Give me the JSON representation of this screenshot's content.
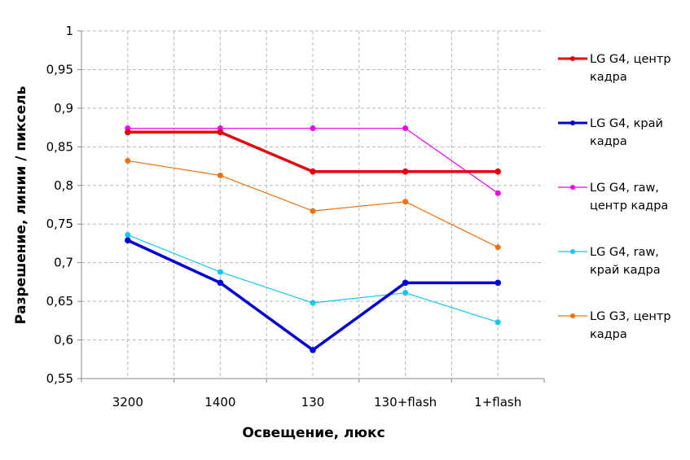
{
  "chart_data": {
    "type": "line",
    "title": "",
    "xlabel": "Освещение, люкс",
    "ylabel": "Разрешение, линии / пиксель",
    "categories": [
      "3200",
      "1400",
      "130",
      "130+flash",
      "1+flash"
    ],
    "ylim": [
      0.55,
      1
    ],
    "yticks": [
      "0,55",
      "0,6",
      "0,65",
      "0,7",
      "0,75",
      "0,8",
      "0,85",
      "0,9",
      "0,95",
      "1"
    ],
    "grid": true,
    "legend_position": "right",
    "series": [
      {
        "name_lines": [
          "LG G4, центр",
          "кадра"
        ],
        "color": "#e8000b",
        "width": 3.5,
        "values": [
          0.869,
          0.869,
          0.818,
          0.818,
          0.818
        ]
      },
      {
        "name_lines": [
          "LG G4, край",
          "кадра"
        ],
        "color": "#0000d8",
        "width": 3.5,
        "values": [
          0.729,
          0.674,
          0.587,
          0.674,
          0.674
        ]
      },
      {
        "name_lines": [
          "LG G4, raw,",
          "центр кадра"
        ],
        "color": "#f000f0",
        "width": 1.2,
        "values": [
          0.874,
          0.874,
          0.874,
          0.874,
          0.79
        ]
      },
      {
        "name_lines": [
          "LG G4, raw,",
          "край кадра"
        ],
        "color": "#10c8f0",
        "width": 1.2,
        "values": [
          0.736,
          0.688,
          0.648,
          0.661,
          0.623
        ]
      },
      {
        "name_lines": [
          "LG G3, центр",
          "кадра"
        ],
        "color": "#f07010",
        "width": 1.2,
        "values": [
          0.832,
          0.813,
          0.767,
          0.779,
          0.72
        ]
      }
    ]
  }
}
